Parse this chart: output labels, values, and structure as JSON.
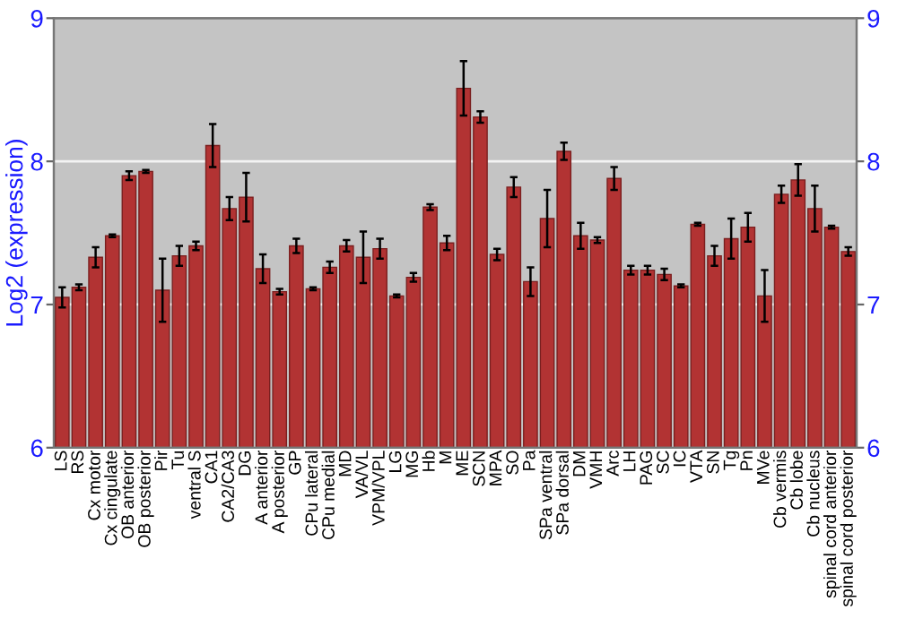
{
  "chart_data": {
    "type": "bar",
    "ylabel": "Log2 (expression)",
    "categories": [
      "LS",
      "RS",
      "Cx motor",
      "Cx cingulate",
      "OB anterior",
      "OB posterior",
      "Pir",
      "Tu",
      "ventral S",
      "CA1",
      "CA2/CA3",
      "DG",
      "A anterior",
      "A posterior",
      "GP",
      "CPu lateral",
      "CPu medial",
      "MD",
      "VA/VL",
      "VPM/VPL",
      "LG",
      "MG",
      "Hb",
      "M",
      "ME",
      "SCN",
      "MPA",
      "SO",
      "Pa",
      "SPa ventral",
      "SPa dorsal",
      "DM",
      "VMH",
      "Arc",
      "LH",
      "PAG",
      "SC",
      "IC",
      "VTA",
      "SN",
      "Tg",
      "Pn",
      "MVe",
      "Cb vermis",
      "Cb lobe",
      "Cb nucleus",
      "spinal cord anterior",
      "spinal cord posterior"
    ],
    "values": [
      7.05,
      7.12,
      7.33,
      7.48,
      7.9,
      7.93,
      7.1,
      7.34,
      7.41,
      8.11,
      7.67,
      7.75,
      7.25,
      7.09,
      7.41,
      7.11,
      7.26,
      7.41,
      7.33,
      7.39,
      7.06,
      7.19,
      7.68,
      7.43,
      8.51,
      8.31,
      7.35,
      7.82,
      7.16,
      7.6,
      8.07,
      7.48,
      7.45,
      7.88,
      7.24,
      7.24,
      7.21,
      7.13,
      7.56,
      7.34,
      7.46,
      7.54,
      7.06,
      7.77,
      7.87,
      7.67,
      7.54,
      7.37
    ],
    "errors": [
      0.07,
      0.02,
      0.07,
      0.01,
      0.03,
      0.01,
      0.22,
      0.07,
      0.03,
      0.15,
      0.08,
      0.17,
      0.1,
      0.02,
      0.05,
      0.01,
      0.04,
      0.04,
      0.18,
      0.07,
      0.01,
      0.03,
      0.02,
      0.05,
      0.19,
      0.04,
      0.04,
      0.07,
      0.1,
      0.2,
      0.06,
      0.09,
      0.02,
      0.08,
      0.03,
      0.03,
      0.04,
      0.01,
      0.01,
      0.07,
      0.14,
      0.1,
      0.18,
      0.06,
      0.11,
      0.16,
      0.01,
      0.03
    ],
    "color": "#b23333",
    "ylim": [
      6,
      9
    ],
    "yticks": [
      6,
      7,
      8,
      9
    ],
    "y2lim": [
      6,
      9
    ],
    "y2ticks": [
      6,
      7,
      8,
      9
    ],
    "grid": "y"
  }
}
